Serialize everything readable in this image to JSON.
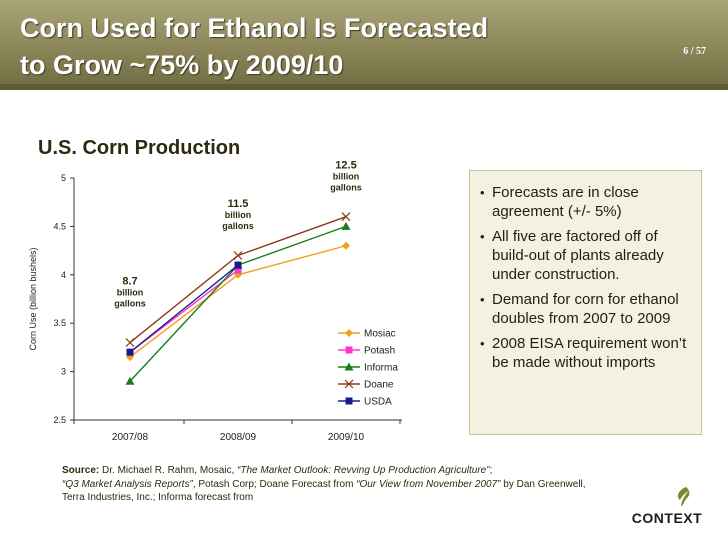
{
  "slide": {
    "title_line1": "Corn Used for Ethanol Is Forecasted",
    "title_line2": "to Grow ~75% by 2009/10",
    "page_number": "6 / 57"
  },
  "chart_data": {
    "type": "line",
    "title": "U.S. Corn Production",
    "ylabel": "Corn Use (billion bushels)",
    "xlabel": "",
    "categories": [
      "2007/08",
      "2008/09",
      "2009/10"
    ],
    "ylim": [
      2.5,
      5
    ],
    "yticks": [
      "2.5",
      "3",
      "3.5",
      "4",
      "4.5",
      "5"
    ],
    "grid": false,
    "legend_position": "right",
    "series": [
      {
        "name": "Mosiac",
        "values": [
          3.15,
          4.0,
          4.3
        ],
        "color": "#f0a020",
        "marker": "diamond"
      },
      {
        "name": "Potash",
        "values": [
          3.2,
          4.05,
          null
        ],
        "color": "#ff33cc",
        "marker": "square"
      },
      {
        "name": "Informa",
        "values": [
          2.9,
          4.1,
          4.5
        ],
        "color": "#1a7f1a",
        "marker": "triangle"
      },
      {
        "name": "Doane",
        "values": [
          3.3,
          4.2,
          4.6
        ],
        "color": "#8b3a1a",
        "marker": "x"
      },
      {
        "name": "USDA",
        "values": [
          3.2,
          4.1,
          null
        ],
        "color": "#1a1a8c",
        "marker": "square"
      }
    ],
    "annotations": [
      {
        "value": "8.7",
        "unit": "billion",
        "unit2": "gallons",
        "category": "2007/08",
        "y": 3.9
      },
      {
        "value": "11.5",
        "unit": "billion",
        "unit2": "gallons",
        "category": "2008/09",
        "y": 4.7
      },
      {
        "value": "12.5",
        "unit": "billion",
        "unit2": "gallons",
        "category": "2009/10",
        "y": 5.1
      }
    ]
  },
  "callout": {
    "bullets": [
      "Forecasts are in close agreement (+/- 5%)",
      "All five are factored off of build-out of plants already under construction.",
      "Demand for corn for ethanol doubles from 2007 to 2009",
      "2008 EISA requirement won’t be made without imports"
    ]
  },
  "source": {
    "lead": "Source:",
    "part1": " Dr. Michael R. Rahm, Mosaic, ",
    "title1": "“The Market Outlook: Revving Up Production Agriculture”",
    "part2": ";",
    "title2": "“Q3 Market Analysis Reports”",
    "part3": ", Potash Corp; Doane Forecast from ",
    "title3": "“Our View from November 2007”",
    "part4": " by Dan Greenwell, Terra Industries, Inc.; Informa forecast from"
  },
  "logo": {
    "text": "CONTEXT",
    "mark_color": "#7a8a2a"
  }
}
